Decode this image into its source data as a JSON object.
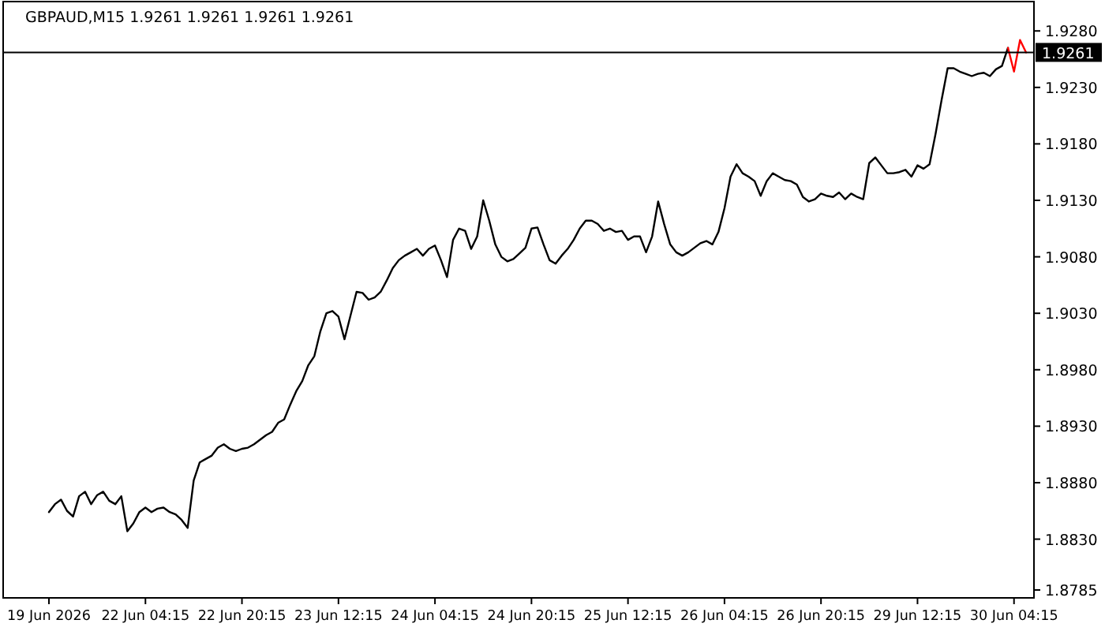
{
  "chart_data": {
    "type": "line",
    "title": "GBPAUD,M15  1.9261 1.9261 1.9261 1.9261",
    "categories": [
      "19 Jun 2026",
      null,
      null,
      null,
      null,
      null,
      null,
      null,
      null,
      null,
      null,
      null,
      null,
      null,
      null,
      null,
      "22 Jun 04:15",
      null,
      null,
      null,
      null,
      null,
      null,
      null,
      null,
      null,
      null,
      null,
      null,
      null,
      null,
      null,
      "22 Jun 20:15",
      null,
      null,
      null,
      null,
      null,
      null,
      null,
      null,
      null,
      null,
      null,
      null,
      null,
      null,
      null,
      "23 Jun 12:15",
      null,
      null,
      null,
      null,
      null,
      null,
      null,
      null,
      null,
      null,
      null,
      null,
      null,
      null,
      null,
      "24 Jun 04:15",
      null,
      null,
      null,
      null,
      null,
      null,
      null,
      null,
      null,
      null,
      null,
      null,
      null,
      null,
      null,
      "24 Jun 20:15",
      null,
      null,
      null,
      null,
      null,
      null,
      null,
      null,
      null,
      null,
      null,
      null,
      null,
      null,
      null,
      "25 Jun 12:15",
      null,
      null,
      null,
      null,
      null,
      null,
      null,
      null,
      null,
      null,
      null,
      null,
      null,
      null,
      null,
      "26 Jun 04:15",
      null,
      null,
      null,
      null,
      null,
      null,
      null,
      null,
      null,
      null,
      null,
      null,
      null,
      null,
      null,
      "26 Jun 20:15",
      null,
      null,
      null,
      null,
      null,
      null,
      null,
      null,
      null,
      null,
      null,
      null,
      null,
      null,
      null,
      "29 Jun 12:15",
      null,
      null,
      null,
      null,
      null,
      null,
      null,
      null,
      null,
      null,
      null,
      null,
      null,
      null,
      null,
      "30 Jun 04:15",
      null,
      null
    ],
    "series": [
      {
        "color": "#000000",
        "values": [
          1.8854,
          1.8861,
          1.8865,
          1.8855,
          1.885,
          1.8868,
          1.8872,
          1.8861,
          1.8869,
          1.8872,
          1.8864,
          1.8861,
          1.8868,
          1.8837,
          1.8844,
          1.8854,
          1.8858,
          1.8854,
          1.8857,
          1.8858,
          1.8854,
          1.8852,
          1.8847,
          1.884,
          1.8882,
          1.8898,
          1.8901,
          1.8904,
          1.8911,
          1.8914,
          1.891,
          1.8908,
          1.891,
          1.8911,
          1.8914,
          1.8918,
          1.8922,
          1.8925,
          1.8933,
          1.8936,
          1.8949,
          1.8961,
          1.897,
          1.8984,
          1.8992,
          1.9014,
          1.903,
          1.9032,
          1.9027,
          1.9007,
          1.9028,
          1.9049,
          1.9048,
          1.9042,
          1.9044,
          1.9049,
          1.9059,
          1.907,
          1.9077,
          1.9081,
          1.9084,
          1.9087,
          1.9081,
          1.9087,
          1.909,
          1.9077,
          1.9062,
          1.9095,
          1.9105,
          1.9103,
          1.9087,
          1.9098,
          1.913,
          1.9112,
          1.9091,
          1.908,
          1.9076,
          1.9078,
          1.9083,
          1.9088,
          1.9105,
          1.9106,
          1.9091,
          1.9077,
          1.9074,
          1.9081,
          1.9087,
          1.9095,
          1.9105,
          1.9112,
          1.9112,
          1.9109,
          1.9103,
          1.9105,
          1.9102,
          1.9103,
          1.9095,
          1.9098,
          1.9098,
          1.9084,
          1.9098,
          1.9129,
          1.9109,
          1.9091,
          1.9084,
          1.9081,
          1.9084,
          1.9088,
          1.9092,
          1.9094,
          1.9091,
          1.9102,
          1.9123,
          1.9151,
          1.9162,
          1.9154,
          1.9151,
          1.9147,
          1.9134,
          1.9147,
          1.9154,
          1.9151,
          1.9148,
          1.9147,
          1.9144,
          1.9133,
          1.9129,
          1.9131,
          1.9136,
          1.9134,
          1.9133,
          1.9137,
          1.9131,
          1.9136,
          1.9133,
          1.9131,
          1.9163,
          1.9168,
          1.9161,
          1.9154,
          1.9154,
          1.9155,
          1.9157,
          1.9151,
          1.9161,
          1.9158,
          1.9162,
          1.9189,
          1.9219,
          1.9247,
          1.9247,
          1.9244,
          1.9242,
          1.924,
          1.9242,
          1.9243,
          1.924,
          1.9246,
          1.9249,
          1.9265,
          null,
          null,
          null
        ]
      },
      {
        "color": "#ff0000",
        "values": [
          null,
          null,
          null,
          null,
          null,
          null,
          null,
          null,
          null,
          null,
          null,
          null,
          null,
          null,
          null,
          null,
          null,
          null,
          null,
          null,
          null,
          null,
          null,
          null,
          null,
          null,
          null,
          null,
          null,
          null,
          null,
          null,
          null,
          null,
          null,
          null,
          null,
          null,
          null,
          null,
          null,
          null,
          null,
          null,
          null,
          null,
          null,
          null,
          null,
          null,
          null,
          null,
          null,
          null,
          null,
          null,
          null,
          null,
          null,
          null,
          null,
          null,
          null,
          null,
          null,
          null,
          null,
          null,
          null,
          null,
          null,
          null,
          null,
          null,
          null,
          null,
          null,
          null,
          null,
          null,
          null,
          null,
          null,
          null,
          null,
          null,
          null,
          null,
          null,
          null,
          null,
          null,
          null,
          null,
          null,
          null,
          null,
          null,
          null,
          null,
          null,
          null,
          null,
          null,
          null,
          null,
          null,
          null,
          null,
          null,
          null,
          null,
          null,
          null,
          null,
          null,
          null,
          null,
          null,
          null,
          null,
          null,
          null,
          null,
          null,
          null,
          null,
          null,
          null,
          null,
          null,
          null,
          null,
          null,
          null,
          null,
          null,
          null,
          null,
          null,
          null,
          null,
          null,
          null,
          null,
          null,
          null,
          null,
          null,
          null,
          null,
          null,
          null,
          null,
          null,
          null,
          null,
          null,
          null,
          1.9265,
          1.9244,
          1.9272,
          1.9261
        ]
      }
    ],
    "ylim": [
      1.8778,
      1.9306
    ],
    "yticks": [
      {
        "value": 1.8785,
        "label": "1.8785"
      },
      {
        "value": 1.883,
        "label": "1.8830"
      },
      {
        "value": 1.888,
        "label": "1.8880"
      },
      {
        "value": 1.893,
        "label": "1.8930"
      },
      {
        "value": 1.898,
        "label": "1.8980"
      },
      {
        "value": 1.903,
        "label": "1.9030"
      },
      {
        "value": 1.908,
        "label": "1.9080"
      },
      {
        "value": 1.913,
        "label": "1.9130"
      },
      {
        "value": 1.918,
        "label": "1.9180"
      },
      {
        "value": 1.923,
        "label": "1.9230"
      },
      {
        "value": 1.928,
        "label": "1.9280"
      }
    ],
    "ref_lines": [
      {
        "axis": "y",
        "value": 1.9261,
        "label": "1.9261",
        "color": "#000000"
      }
    ],
    "grid": false
  }
}
